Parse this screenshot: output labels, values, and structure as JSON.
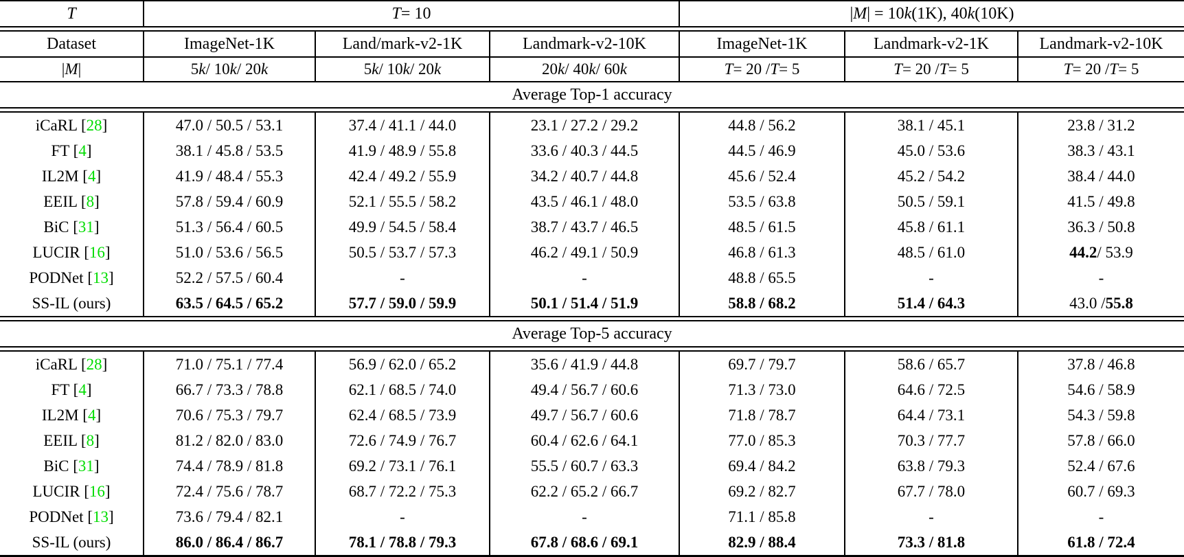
{
  "accent": {
    "citation_color": "#00DC00",
    "border_color": "#000000"
  },
  "table": {
    "header": {
      "col1": "T",
      "group1": "T = 10",
      "group2": "|M| = 10k (1K), 40k (10K)",
      "datasets": [
        "Dataset",
        "ImageNet-1K",
        "Land/mark-v2-1K",
        "Landmark-v2-10K",
        "ImageNet-1K",
        "Landmark-v2-1K",
        "Landmark-v2-10K"
      ],
      "memory": [
        "|M|",
        "5k / 10k / 20k",
        "5k / 10k / 20k",
        "20k / 40k / 60k",
        "T = 20 / T = 5",
        "T = 20 / T = 5",
        "T = 20 / T = 5"
      ]
    },
    "sections": [
      {
        "title": "Average Top-1 accuracy",
        "rows": [
          {
            "method": "iCaRL",
            "cite": "28",
            "cells": [
              "47.0 / 50.5 / 53.1",
              "37.4 / 41.1 / 44.0",
              "23.1 / 27.2 / 29.2",
              "44.8 / 56.2",
              "38.1 / 45.1",
              "23.8 / 31.2"
            ]
          },
          {
            "method": "FT",
            "cite": "4",
            "cells": [
              "38.1 / 45.8 / 53.5",
              "41.9 / 48.9 / 55.8",
              "33.6 / 40.3 / 44.5",
              "44.5 / 46.9",
              "45.0 / 53.6",
              "38.3 / 43.1"
            ]
          },
          {
            "method": "IL2M",
            "cite": "4",
            "cells": [
              "41.9 / 48.4 / 55.3",
              "42.4 / 49.2 / 55.9",
              "34.2 / 40.7 / 44.8",
              "45.6 / 52.4",
              "45.2 / 54.2",
              "38.4 / 44.0"
            ]
          },
          {
            "method": "EEIL",
            "cite": "8",
            "cells": [
              "57.8 / 59.4 / 60.9",
              "52.1 / 55.5 / 58.2",
              "43.5 / 46.1 / 48.0",
              "53.5 / 63.8",
              "50.5 / 59.1",
              "41.5 / 49.8"
            ]
          },
          {
            "method": "BiC",
            "cite": "31",
            "cells": [
              "51.3 / 56.4 / 60.5",
              "49.9 / 54.5 / 58.4",
              "38.7 / 43.7 / 46.5",
              "48.5 / 61.5",
              "45.8 / 61.1",
              "36.3 / 50.8"
            ]
          },
          {
            "method": "LUCIR",
            "cite": "16",
            "cells": [
              "51.0 / 53.6 / 56.5",
              "50.5 / 53.7 / 57.3",
              "46.2 / 49.1 / 50.9",
              "46.8 / 61.3",
              "48.5 / 61.0",
              "44.2 / 53.9"
            ],
            "bold": [
              "none",
              "none",
              "none",
              "none",
              "none",
              "first"
            ]
          },
          {
            "method": "PODNet",
            "cite": "13",
            "cells": [
              "52.2 / 57.5 / 60.4",
              "-",
              "-",
              "48.8 / 65.5",
              "-",
              "-"
            ]
          },
          {
            "method": "SS-IL (ours)",
            "cells": [
              "63.5 / 64.5 / 65.2",
              "57.7 / 59.0 / 59.9",
              "50.1 / 51.4 / 51.9",
              "58.8 / 68.2",
              "51.4 / 64.3",
              "43.0 / 55.8"
            ],
            "bold": [
              "all",
              "all",
              "all",
              "all",
              "all",
              "last"
            ]
          }
        ]
      },
      {
        "title": "Average Top-5 accuracy",
        "rows": [
          {
            "method": "iCaRL",
            "cite": "28",
            "cells": [
              "71.0 / 75.1 / 77.4",
              "56.9 / 62.0 / 65.2",
              "35.6 / 41.9 / 44.8",
              "69.7 / 79.7",
              "58.6 / 65.7",
              "37.8 / 46.8"
            ]
          },
          {
            "method": "FT",
            "cite": "4",
            "cells": [
              "66.7 / 73.3 / 78.8",
              "62.1 / 68.5 / 74.0",
              "49.4 / 56.7 / 60.6",
              "71.3 / 73.0",
              "64.6 / 72.5",
              "54.6 / 58.9"
            ]
          },
          {
            "method": "IL2M",
            "cite": "4",
            "cells": [
              "70.6 / 75.3 / 79.7",
              "62.4 / 68.5 / 73.9",
              "49.7 / 56.7 / 60.6",
              "71.8 / 78.7",
              "64.4 / 73.1",
              "54.3 / 59.8"
            ]
          },
          {
            "method": "EEIL",
            "cite": "8",
            "cells": [
              "81.2 / 82.0 / 83.0",
              "72.6 / 74.9 / 76.7",
              "60.4 / 62.6 / 64.1",
              "77.0 / 85.3",
              "70.3 / 77.7",
              "57.8 / 66.0"
            ]
          },
          {
            "method": "BiC",
            "cite": "31",
            "cells": [
              "74.4 / 78.9 / 81.8",
              "69.2 / 73.1 / 76.1",
              "55.5 / 60.7 / 63.3",
              "69.4 / 84.2",
              "63.8 / 79.3",
              "52.4 / 67.6"
            ]
          },
          {
            "method": "LUCIR",
            "cite": "16",
            "cells": [
              "72.4 / 75.6 / 78.7",
              "68.7 / 72.2 / 75.3",
              "62.2 / 65.2 / 66.7",
              "69.2 / 82.7",
              "67.7 / 78.0",
              "60.7 / 69.3"
            ]
          },
          {
            "method": "PODNet",
            "cite": "13",
            "cells": [
              "73.6 / 79.4 / 82.1",
              "-",
              "-",
              "71.1 / 85.8",
              "-",
              "-"
            ]
          },
          {
            "method": "SS-IL (ours)",
            "cells": [
              "86.0 / 86.4 / 86.7",
              "78.1 / 78.8 / 79.3",
              "67.8 / 68.6 / 69.1",
              "82.9 / 88.4",
              "73.3 / 81.8",
              "61.8 / 72.4"
            ],
            "bold": [
              "all",
              "all",
              "all",
              "all",
              "all",
              "all"
            ]
          }
        ]
      }
    ]
  }
}
